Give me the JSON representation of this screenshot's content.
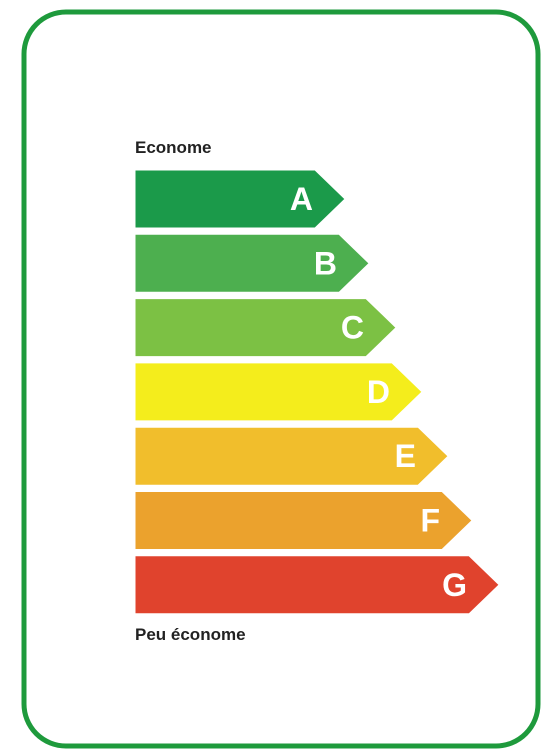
{
  "label": {
    "top_label": "Econome",
    "bottom_label": "Peu économe",
    "classes": [
      {
        "letter": "A",
        "color": "#1b9a4a"
      },
      {
        "letter": "B",
        "color": "#4daf4f"
      },
      {
        "letter": "C",
        "color": "#7cc144"
      },
      {
        "letter": "D",
        "color": "#f4ed1c"
      },
      {
        "letter": "E",
        "color": "#f1be2c"
      },
      {
        "letter": "F",
        "color": "#eba22d"
      },
      {
        "letter": "G",
        "color": "#e0432d"
      }
    ]
  }
}
